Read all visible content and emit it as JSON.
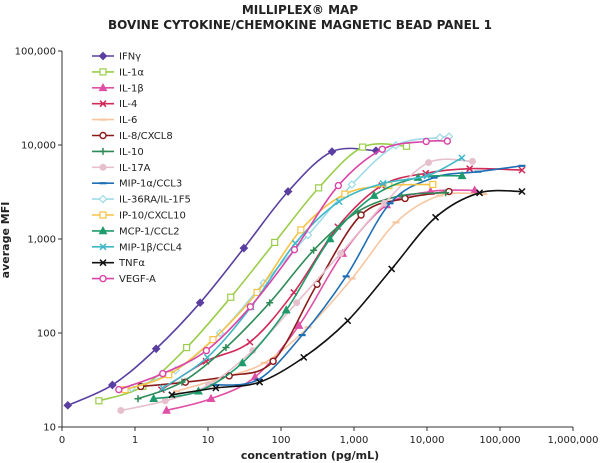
{
  "chart_data": {
    "type": "line",
    "title": "MILLIPLEX® MAP",
    "subtitle": "BOVINE CYTOKINE/CHEMOKINE MAGNETIC BEAD PANEL 1",
    "xlabel": "concentration (pg/mL)",
    "ylabel": "average MFI",
    "x_scale": "log",
    "y_scale": "log",
    "xlim": [
      0.1,
      1000000
    ],
    "ylim": [
      10,
      100000
    ],
    "x_ticks": [
      "0",
      "1",
      "10",
      "100",
      "1,000",
      "10,000",
      "100,000",
      "1,000,000"
    ],
    "y_ticks": [
      "10",
      "100",
      "1,000",
      "10,000",
      "100,000"
    ],
    "grid": false,
    "legend_position": "top-left inside",
    "series": [
      {
        "name": "IFNγ",
        "color": "#5a3fa0",
        "marker": "diamond",
        "x": [
          0.12,
          0.49,
          1.95,
          7.8,
          31,
          125,
          500,
          2000
        ],
        "y": [
          17,
          28,
          68,
          210,
          800,
          3200,
          8500,
          8700
        ]
      },
      {
        "name": "IL-1α",
        "color": "#9acd4a",
        "marker": "square-open",
        "x": [
          0.32,
          1.28,
          5.1,
          20.5,
          82,
          328,
          1310,
          5240
        ],
        "y": [
          19,
          27,
          70,
          240,
          920,
          3500,
          9500,
          9700
        ]
      },
      {
        "name": "IL-1β",
        "color": "#e04fa6",
        "marker": "triangle",
        "x": [
          2.7,
          11,
          44,
          176,
          700,
          2800,
          11200,
          45000
        ],
        "y": [
          15,
          20,
          34,
          120,
          700,
          2300,
          3200,
          3300
        ]
      },
      {
        "name": "IL-4",
        "color": "#d02a58",
        "marker": "x",
        "x": [
          2.3,
          9.4,
          37.5,
          150,
          600,
          2400,
          9600,
          38400,
          200000
        ],
        "y": [
          25,
          50,
          80,
          270,
          1350,
          3700,
          5000,
          5600,
          5400
        ]
      },
      {
        "name": "IL-6",
        "color": "#f7c6a0",
        "marker": "dash",
        "x": [
          3.7,
          15,
          59,
          235,
          940,
          3760,
          15000,
          60000
        ],
        "y": [
          24,
          33,
          48,
          115,
          380,
          1500,
          2900,
          3000
        ]
      },
      {
        "name": "IL-8/CXCL8",
        "color": "#8b1a1a",
        "marker": "circle-open",
        "x": [
          1.2,
          4.9,
          19.5,
          78,
          312,
          1250,
          5000,
          20000
        ],
        "y": [
          27,
          30,
          35,
          50,
          330,
          1800,
          2700,
          3200
        ]
      },
      {
        "name": "IL-10",
        "color": "#2e8b57",
        "marker": "plus",
        "x": [
          1.1,
          4.4,
          17.6,
          70,
          280,
          1120,
          4500,
          18000
        ],
        "y": [
          20,
          30,
          70,
          210,
          760,
          1950,
          2900,
          3100
        ]
      },
      {
        "name": "IL-17A",
        "color": "#e6c0cc",
        "marker": "circle",
        "x": [
          0.64,
          2.6,
          10.2,
          41,
          164,
          655,
          2620,
          10500,
          42000
        ],
        "y": [
          15,
          19,
          28,
          65,
          210,
          700,
          2400,
          6500,
          6700
        ]
      },
      {
        "name": "MIP-1α/CCL3",
        "color": "#1f6fb5",
        "marker": "dash",
        "x": [
          12,
          49,
          195,
          780,
          3120,
          12500,
          50000,
          200000
        ],
        "y": [
          28,
          32,
          95,
          400,
          2400,
          4500,
          5200,
          6000
        ]
      },
      {
        "name": "IL-36RA/IL-1F5",
        "color": "#9edbe8",
        "marker": "diamond-open",
        "x": [
          0.9,
          3.6,
          14.6,
          58,
          234,
          935,
          3740,
          15000,
          20000
        ],
        "y": [
          26,
          40,
          100,
          340,
          1100,
          3800,
          9900,
          12000,
          12300
        ]
      },
      {
        "name": "IP-10/CXCL10",
        "color": "#f5c242",
        "marker": "square-open",
        "x": [
          0.73,
          2.9,
          11.7,
          47,
          187,
          750,
          3000,
          12000
        ],
        "y": [
          25,
          36,
          85,
          270,
          1250,
          3000,
          3700,
          3800
        ]
      },
      {
        "name": "MCP-1/CCL2",
        "color": "#1e9b6a",
        "marker": "triangle",
        "x": [
          1.8,
          7.4,
          29.5,
          118,
          470,
          1890,
          7550,
          30200
        ],
        "y": [
          20,
          24,
          48,
          175,
          1000,
          2900,
          4500,
          4700
        ]
      },
      {
        "name": "MIP-1β/CCL4",
        "color": "#3fb8c8",
        "marker": "x",
        "x": [
          2.4,
          9.8,
          39,
          157,
          625,
          2500,
          10000,
          30000
        ],
        "y": [
          26,
          55,
          190,
          900,
          2500,
          3900,
          4700,
          7300
        ]
      },
      {
        "name": "TNFα",
        "color": "#111111",
        "marker": "x",
        "x": [
          3.2,
          12.8,
          51,
          205,
          820,
          3280,
          13100,
          52500,
          200000
        ],
        "y": [
          22,
          26,
          30,
          55,
          135,
          480,
          1700,
          3100,
          3200
        ]
      },
      {
        "name": "VEGF-A",
        "color": "#d944a8",
        "marker": "circle-open",
        "x": [
          0.6,
          2.4,
          9.5,
          38,
          153,
          610,
          2440,
          9760,
          19000
        ],
        "y": [
          25,
          37,
          65,
          190,
          770,
          3700,
          9000,
          10900,
          11000
        ]
      }
    ]
  }
}
